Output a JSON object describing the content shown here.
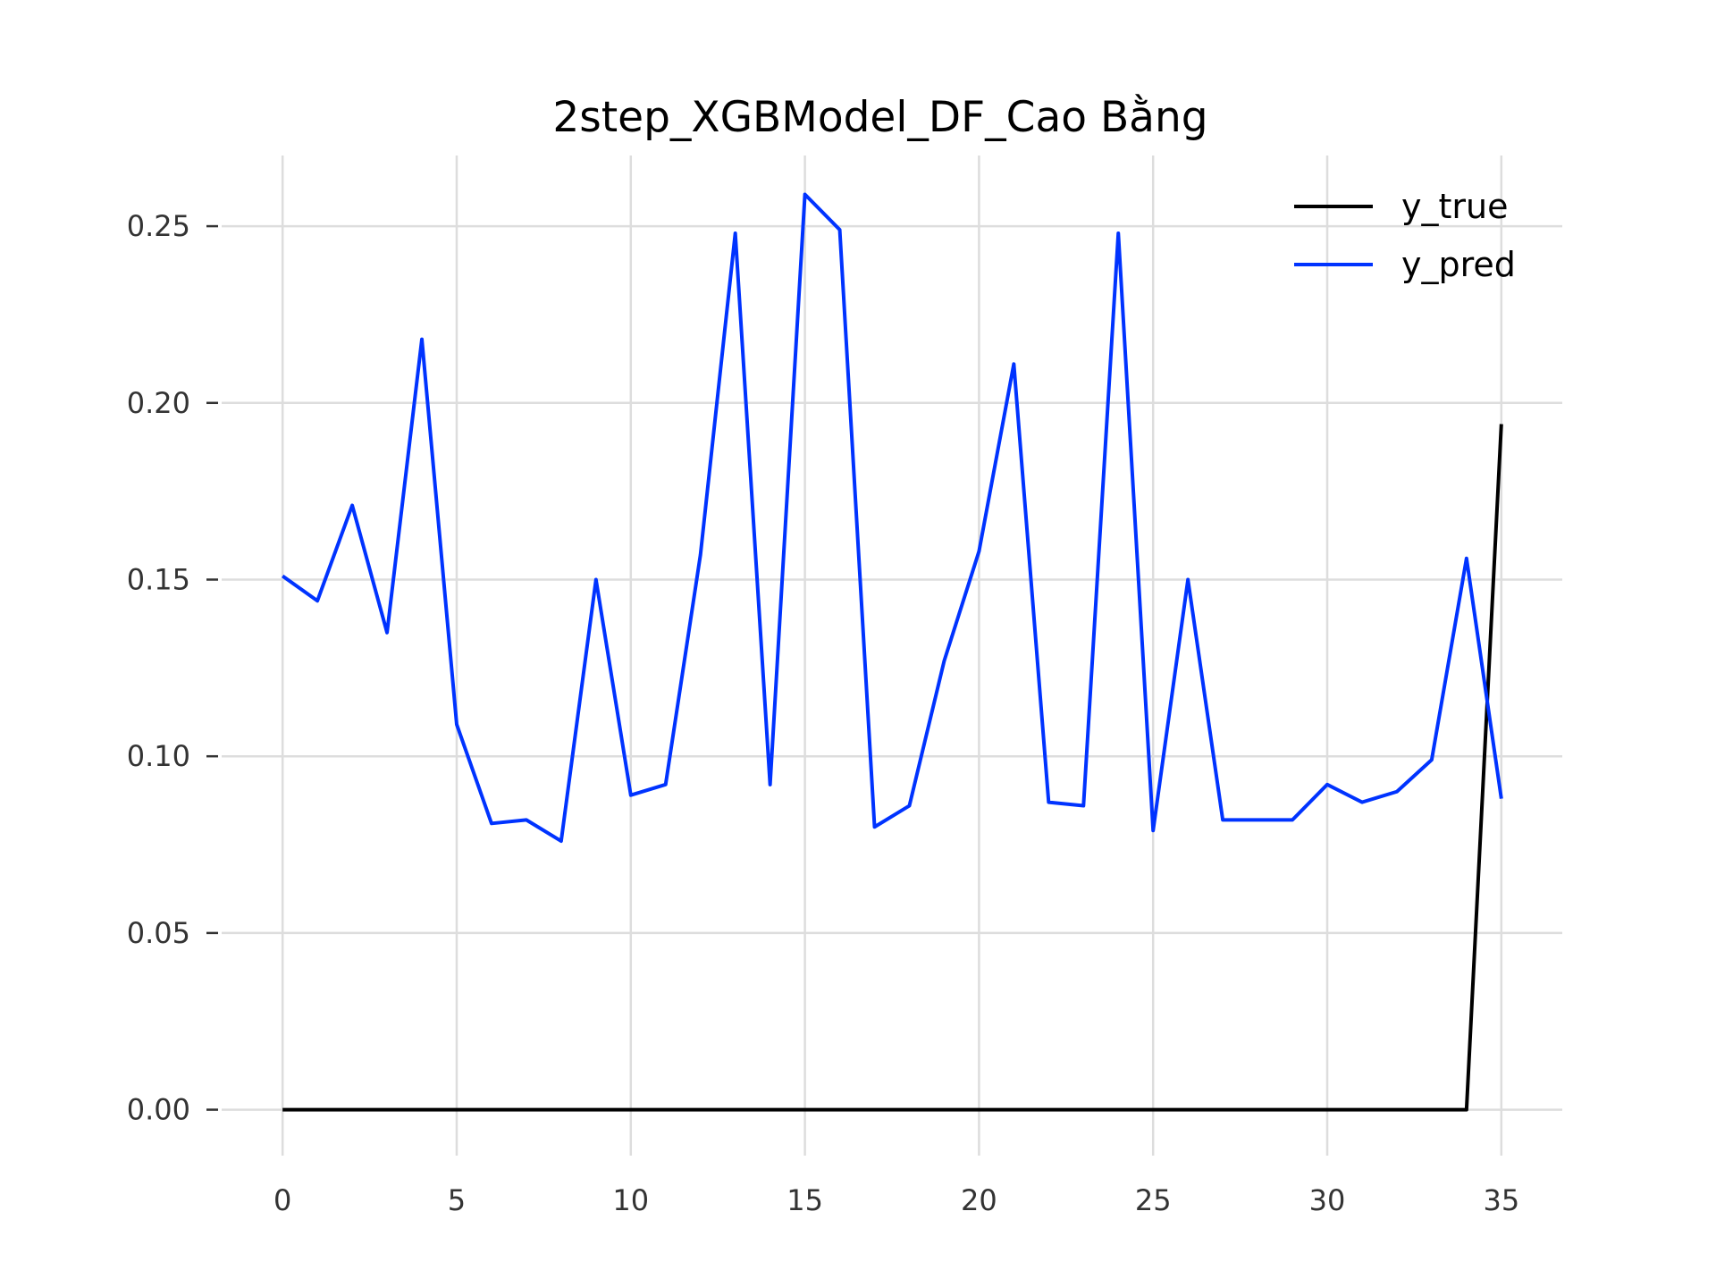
{
  "chart_data": {
    "type": "line",
    "title": "2step_XGBModel_DF_Cao Bằng",
    "xlabel": "",
    "ylabel": "",
    "xlim": [
      -1.75,
      36.75
    ],
    "ylim": [
      -0.013,
      0.27
    ],
    "grid": true,
    "legend_position": "top-right",
    "x_ticks": [
      0,
      5,
      10,
      15,
      20,
      25,
      30,
      35
    ],
    "x_tick_labels": [
      "0",
      "5",
      "10",
      "15",
      "20",
      "25",
      "30",
      "35"
    ],
    "y_ticks": [
      0.0,
      0.05,
      0.1,
      0.15,
      0.2,
      0.25
    ],
    "y_tick_labels": [
      "0.00",
      "0.05",
      "0.10",
      "0.15",
      "0.20",
      "0.25"
    ],
    "x": [
      0,
      1,
      2,
      3,
      4,
      5,
      6,
      7,
      8,
      9,
      10,
      11,
      12,
      13,
      14,
      15,
      16,
      17,
      18,
      19,
      20,
      21,
      22,
      23,
      24,
      25,
      26,
      27,
      28,
      29,
      30,
      31,
      32,
      33,
      34,
      35
    ],
    "series": [
      {
        "name": "y_true",
        "color": "#000000",
        "values": [
          0,
          0,
          0,
          0,
          0,
          0,
          0,
          0,
          0,
          0,
          0,
          0,
          0,
          0,
          0,
          0,
          0,
          0,
          0,
          0,
          0,
          0,
          0,
          0,
          0,
          0,
          0,
          0,
          0,
          0,
          0,
          0,
          0,
          0,
          0,
          0.194
        ]
      },
      {
        "name": "y_pred",
        "color": "#0033ff",
        "values": [
          0.151,
          0.144,
          0.171,
          0.135,
          0.218,
          0.109,
          0.081,
          0.082,
          0.076,
          0.15,
          0.089,
          0.092,
          0.157,
          0.248,
          0.092,
          0.259,
          0.249,
          0.08,
          0.086,
          0.127,
          0.158,
          0.211,
          0.087,
          0.086,
          0.248,
          0.079,
          0.15,
          0.082,
          0.082,
          0.082,
          0.092,
          0.087,
          0.09,
          0.099,
          0.156,
          0.088
        ]
      }
    ]
  }
}
